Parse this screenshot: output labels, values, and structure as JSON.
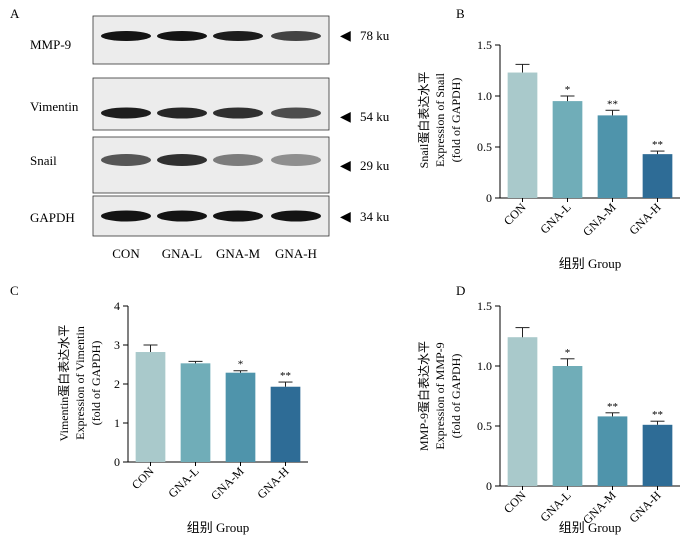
{
  "panels": {
    "A": "A",
    "B": "B",
    "C": "C",
    "D": "D"
  },
  "blot": {
    "proteins": [
      "MMP-9",
      "Vimentin",
      "Snail",
      "GAPDH"
    ],
    "sizes": [
      "78 ku",
      "54 ku",
      "29 ku",
      "34 ku"
    ],
    "lanes": [
      "CON",
      "GNA-L",
      "GNA-M",
      "GNA-H"
    ],
    "band_intensity": [
      [
        0.95,
        0.95,
        0.9,
        0.7
      ],
      [
        0.9,
        0.85,
        0.8,
        0.65
      ],
      [
        0.6,
        0.8,
        0.4,
        0.3
      ],
      [
        0.95,
        0.95,
        0.95,
        0.95
      ]
    ]
  },
  "chart_data": [
    {
      "panel": "B",
      "type": "bar",
      "categories": [
        "CON",
        "GNA-L",
        "GNA-M",
        "GNA-H"
      ],
      "values": [
        1.23,
        0.95,
        0.81,
        0.43
      ],
      "errors": [
        0.08,
        0.05,
        0.05,
        0.03
      ],
      "significance": [
        "",
        "*",
        "**",
        "**"
      ],
      "ylabel_lines": [
        "Snail蛋白表达水平",
        "Expression of Snail",
        "(fold of GAPDH)"
      ],
      "xlabel": "组别 Group",
      "ylim": [
        0,
        1.5
      ],
      "yticks": [
        0,
        0.5,
        1.0,
        1.5
      ],
      "ytick_labels": [
        "0",
        "0.5",
        "1.0",
        "1.5"
      ],
      "colors": [
        "#a9c9cb",
        "#70adb8",
        "#4f94ab",
        "#2e6c96"
      ]
    },
    {
      "panel": "C",
      "type": "bar",
      "categories": [
        "CON",
        "GNA-L",
        "GNA-M",
        "GNA-H"
      ],
      "values": [
        2.82,
        2.53,
        2.29,
        1.93
      ],
      "errors": [
        0.18,
        0.05,
        0.05,
        0.12
      ],
      "significance": [
        "",
        "",
        "*",
        "**"
      ],
      "ylabel_lines": [
        "Vimentin蛋白表达水平",
        "Expression of Vimentin",
        "(fold of GAPDH)"
      ],
      "xlabel": "组别 Group",
      "ylim": [
        0,
        4
      ],
      "yticks": [
        0,
        1,
        2,
        3,
        4
      ],
      "ytick_labels": [
        "0",
        "1",
        "2",
        "3",
        "4"
      ],
      "colors": [
        "#a9c9cb",
        "#70adb8",
        "#4f94ab",
        "#2e6c96"
      ]
    },
    {
      "panel": "D",
      "type": "bar",
      "categories": [
        "CON",
        "GNA-L",
        "GNA-M",
        "GNA-H"
      ],
      "values": [
        1.24,
        1.0,
        0.58,
        0.51
      ],
      "errors": [
        0.08,
        0.06,
        0.03,
        0.03
      ],
      "significance": [
        "",
        "*",
        "**",
        "**"
      ],
      "ylabel_lines": [
        "MMP-9蛋白表达水平",
        "Expression of MMP-9",
        "(fold of GAPDH)"
      ],
      "xlabel": "组别 Group",
      "ylim": [
        0,
        1.5
      ],
      "yticks": [
        0,
        0.5,
        1.0,
        1.5
      ],
      "ytick_labels": [
        "0",
        "0.5",
        "1.0",
        "1.5"
      ],
      "colors": [
        "#a9c9cb",
        "#70adb8",
        "#4f94ab",
        "#2e6c96"
      ]
    }
  ]
}
